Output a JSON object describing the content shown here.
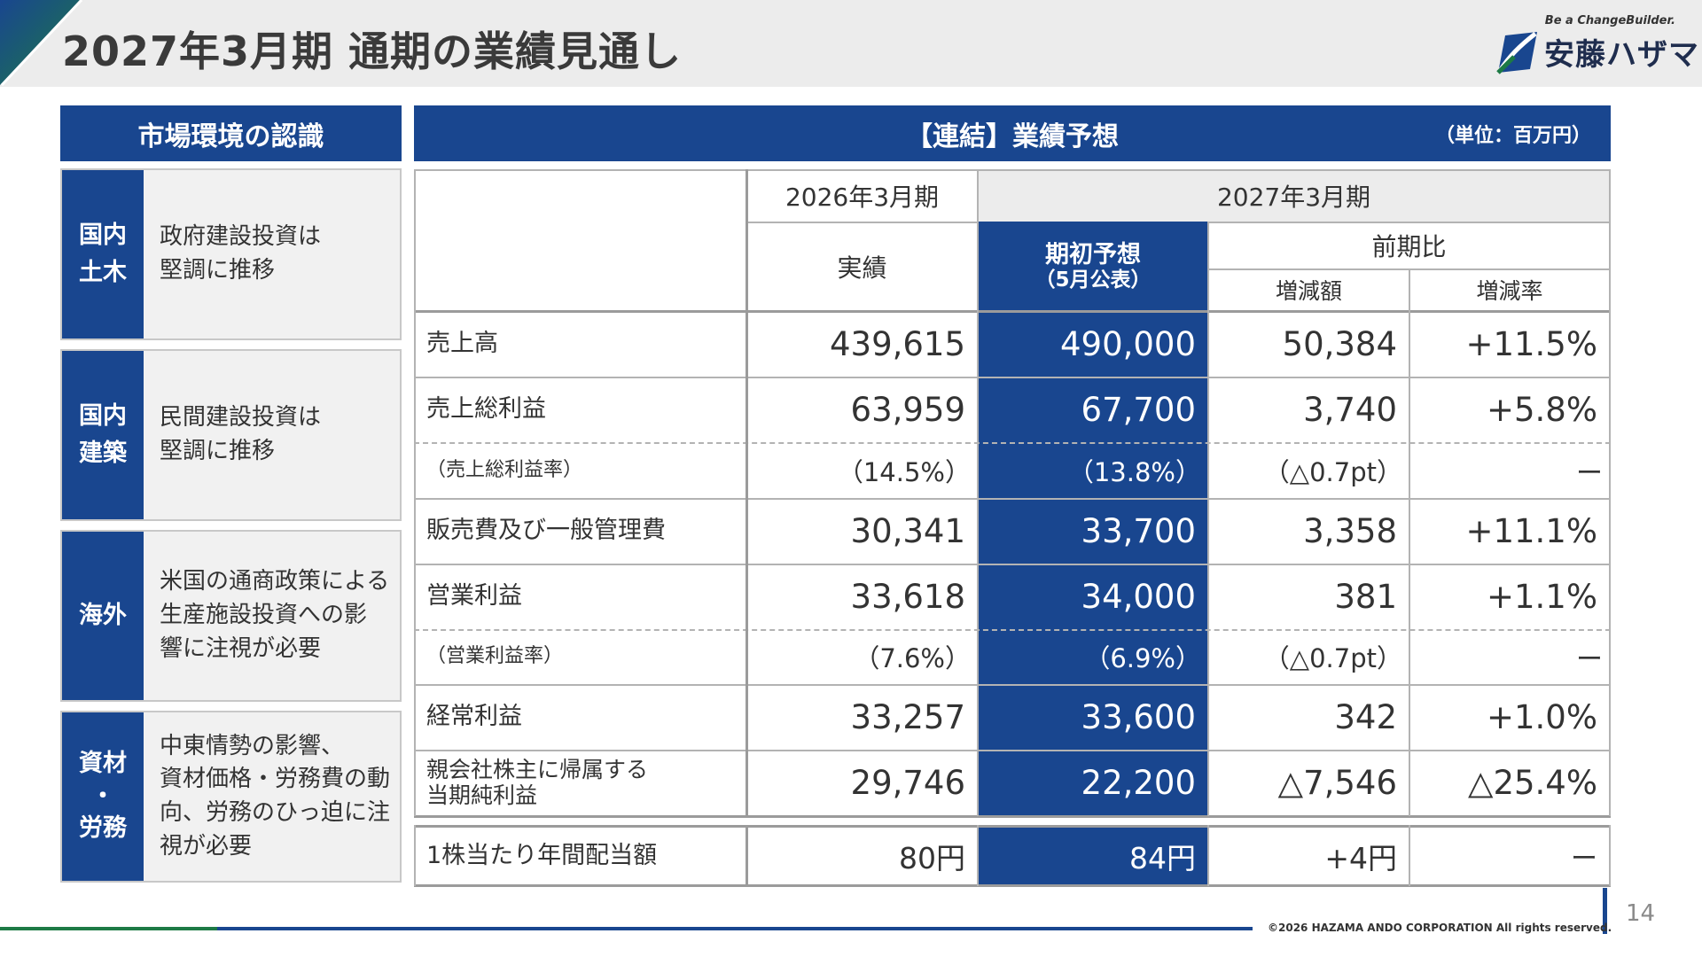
{
  "header": {
    "title": "2027年3月期 通期の業績見通し",
    "logo_tagline": "Be a ChangeBuilder.",
    "logo_name": "安藤ハザマ"
  },
  "market": {
    "title": "市場環境の認識",
    "items": [
      {
        "label": "国内\n土木",
        "text": "政府建設投資は\n堅調に推移"
      },
      {
        "label": "国内\n建築",
        "text": "民間建設投資は\n堅調に推移"
      },
      {
        "label": "海外",
        "text": "米国の通商政策による\n生産施設投資への影\n響に注視が必要"
      },
      {
        "label": "資材\n・\n労務",
        "text": "中東情勢の影響、\n資材価格・労務費の動\n向、労務のひっ迫に注\n視が必要"
      }
    ]
  },
  "forecast": {
    "title": "【連結】業績予想",
    "unit": "（単位：百万円）",
    "col_2026": "2026年3月期",
    "col_2027": "2027年3月期",
    "col_actual": "実績",
    "col_initial_forecast": "期初予想",
    "col_initial_forecast_sub": "（5月公表）",
    "col_yoy": "前期比",
    "col_change_amount": "増減額",
    "col_change_rate": "増減率",
    "rows": [
      {
        "label": "売上高",
        "actual": "439,615",
        "forecast": "490,000",
        "change": "50,384",
        "rate": "+11.5%"
      },
      {
        "label": "売上総利益",
        "actual": "63,959",
        "forecast": "67,700",
        "change": "3,740",
        "rate": "+5.8%"
      },
      {
        "label": "（売上総利益率）",
        "actual": "（14.5%）",
        "forecast": "（13.8%）",
        "change": "（△0.7pt）",
        "rate": "ー"
      },
      {
        "label": "販売費及び一般管理費",
        "actual": "30,341",
        "forecast": "33,700",
        "change": "3,358",
        "rate": "+11.1%"
      },
      {
        "label": "営業利益",
        "actual": "33,618",
        "forecast": "34,000",
        "change": "381",
        "rate": "+1.1%"
      },
      {
        "label": "（営業利益率）",
        "actual": "（7.6%）",
        "forecast": "（6.9%）",
        "change": "（△0.7pt）",
        "rate": "ー"
      },
      {
        "label": "経常利益",
        "actual": "33,257",
        "forecast": "33,600",
        "change": "342",
        "rate": "+1.0%"
      },
      {
        "label": "親会社株主に帰属する\n当期純利益",
        "actual": "29,746",
        "forecast": "22,200",
        "change": "△7,546",
        "rate": "△25.4%"
      }
    ],
    "dividend": {
      "label": "1株当たり年間配当額",
      "actual": "80円",
      "forecast": "84円",
      "change": "+4円",
      "rate": "ー"
    }
  },
  "footer": {
    "copyright": "©2026 HAZAMA ANDO CORPORATION All rights reserved.",
    "page_number": "14"
  },
  "colors": {
    "brand_blue": "#19468f",
    "brand_green": "#1d7a45",
    "header_gray": "#ececec"
  }
}
